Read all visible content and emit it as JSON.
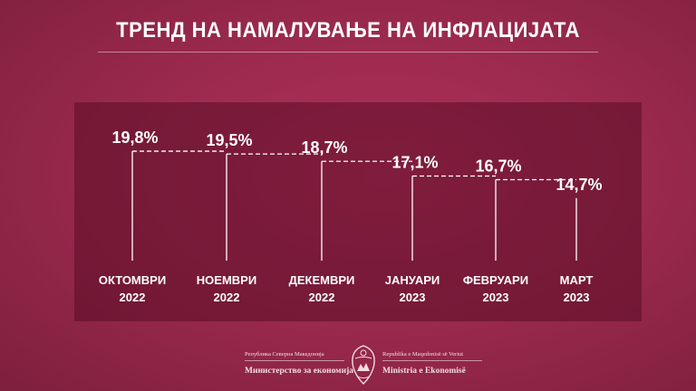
{
  "title": "ТРЕНД НА НАМАЛУВАЊЕ НА ИНФЛАЦИЈАТА",
  "colors": {
    "background": "#9c2a4f",
    "panel": "#5a0c26",
    "line": "#ffffff"
  },
  "chart_data": {
    "type": "step",
    "title": "ТРЕНД НА НАМАЛУВАЊЕ НА ИНФЛАЦИЈАТА",
    "unit": "%",
    "categories": [
      [
        "ОКТОМВРИ",
        "2022"
      ],
      [
        "НОЕМВРИ",
        "2022"
      ],
      [
        "ДЕКЕМВРИ",
        "2022"
      ],
      [
        "ЈАНУАРИ",
        "2023"
      ],
      [
        "ФЕВРУАРИ",
        "2023"
      ],
      [
        "МАРТ",
        "2023"
      ]
    ],
    "values": [
      19.8,
      19.5,
      18.7,
      17.1,
      16.7,
      14.7
    ],
    "value_labels": [
      "19,8%",
      "19,5%",
      "18,7%",
      "17,1%",
      "16,7%",
      "14,7%"
    ]
  },
  "footer": {
    "left_small": "Република Северна Македонија",
    "left_big": "Министерство за економија",
    "right_small": "Republika e Maqedonisë së Veriut",
    "right_big": "Ministria e Ekonomisë",
    "emblem_icon": "coat-of-arms-icon"
  }
}
